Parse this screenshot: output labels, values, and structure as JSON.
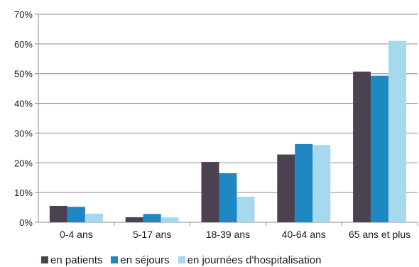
{
  "chart_data": {
    "type": "bar",
    "categories": [
      "0-4 ans",
      "5-17 ans",
      "18-39 ans",
      "40-64 ans",
      "65 ans et plus"
    ],
    "y_ticks": [
      "0%",
      "10%",
      "20%",
      "30%",
      "40%",
      "50%",
      "60%",
      "70%"
    ],
    "ylim": [
      0,
      70
    ],
    "unit": "%",
    "grid": true,
    "legend_position": "bottom",
    "series": [
      {
        "name": "en patients",
        "color": "#4b4150",
        "values": [
          5.5,
          1.7,
          20.3,
          22.8,
          50.7
        ]
      },
      {
        "name": "en séjours",
        "color": "#1f87c2",
        "values": [
          5.2,
          2.8,
          16.5,
          26.3,
          49.3
        ]
      },
      {
        "name": "en journées d'hospitalisation",
        "color": "#a6d8ee",
        "values": [
          2.9,
          1.6,
          8.6,
          26.0,
          61.0
        ]
      }
    ]
  }
}
